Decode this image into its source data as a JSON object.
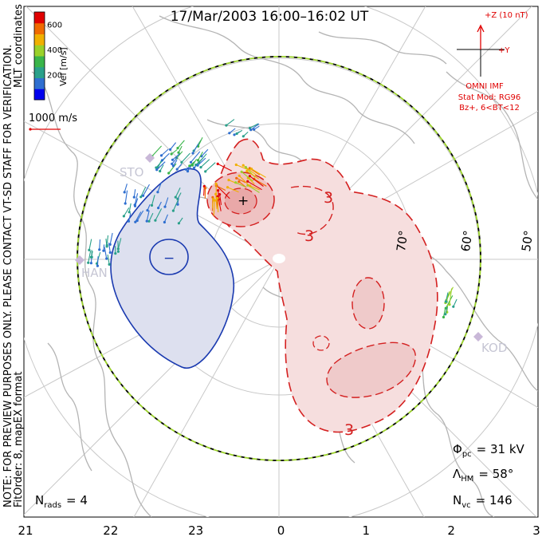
{
  "title": "17/Mar/2003 16:00–16:02 UT",
  "coordinate_label": "MLT coordinates",
  "preview_note": "NOTE: FOR PREVIEW PURPOSES ONLY. PLEASE CONTACT VT-SD STAFF FOR VERIFICATION.",
  "fit_info": "FitOrder: 8, mapEX format",
  "color_scale": {
    "label": "Vel [m/s]",
    "ticks": [
      200,
      400,
      600
    ],
    "colors": [
      "#0000ee",
      "#2f6fd0",
      "#2aa08a",
      "#3ab54a",
      "#9ad12a",
      "#f0b000",
      "#f06a00",
      "#e00000"
    ],
    "range": [
      0,
      700
    ]
  },
  "vector_scale": {
    "label": "1000 m/s",
    "color": "#e00000"
  },
  "imf": {
    "z_label": "+Z (10 nT)",
    "y_label": "+Y",
    "source": "OMNI IMF",
    "model": "Stat Mod: RG96",
    "condition": "Bz+, 6<BT<12",
    "color": "#e00000"
  },
  "latitude_labels": [
    "70°",
    "60°",
    "50°"
  ],
  "station_labels": [
    "STO",
    "HAN",
    "KOD"
  ],
  "stats": {
    "nrads_label": "N",
    "nrads_sub": "rads",
    "nrads_value": "= 4",
    "phi_label": "Φ",
    "phi_sub": "pc",
    "phi_value": "= 31 kV",
    "lambda_label": "Λ",
    "lambda_sub": "HM",
    "lambda_value": "= 58°",
    "nvc_label": "N",
    "nvc_sub": "vc",
    "nvc_value": "= 146"
  },
  "contour_labels": [
    "3",
    "3",
    "3"
  ],
  "cell_marks": [
    "−",
    "+"
  ],
  "chart_data": {
    "type": "scatter",
    "title": "17/Mar/2003 16:00–16:02 UT",
    "xlabel": "",
    "ylabel": "",
    "x_axis_ticks": [
      "21",
      "22",
      "23",
      "0",
      "1",
      "2",
      "3"
    ],
    "cross_polar_cap_potential_kV": 31,
    "heppner_maynard_boundary_deg": 58,
    "n_radars": 4,
    "n_vectors": 146,
    "contour_interval_kV": 3,
    "velocity_range_mps": [
      0,
      700
    ]
  }
}
